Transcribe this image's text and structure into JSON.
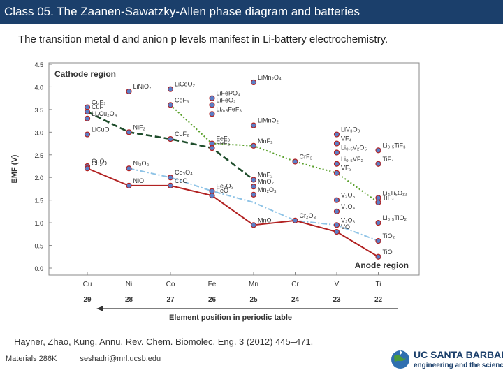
{
  "header": {
    "title": "Class 05. The Zaanen-Sawatzky-Allen phase diagram and batteries"
  },
  "subtitle": "The transition metal d and anion p levels manifest in Li-battery electrochemistry.",
  "citation": "Hayner, Zhao, Kung, Annu. Rev. Chem. Biomolec. Eng. 3 (2012) 445–471.",
  "footer": {
    "course": "Materials 286K",
    "email": "seshadri@mrl.ucsb.edu"
  },
  "logo": {
    "name": "UC SANTA BARBARA",
    "subtitle": "engineering and the sciences"
  },
  "chart_data": {
    "type": "scatter",
    "ylabel": "EMF (V)",
    "xlabel": "Element position in periodic table",
    "ylim": [
      0,
      4.5
    ],
    "yticks": [
      "4.5",
      "4.0",
      "3.5",
      "3.0",
      "2.5",
      "2.0",
      "1.5",
      "1.0",
      "0.5",
      "0.0"
    ],
    "categories": [
      "Cu",
      "Ni",
      "Co",
      "Fe",
      "Mn",
      "Cr",
      "V",
      "Ti"
    ],
    "positions": [
      "29",
      "28",
      "27",
      "26",
      "25",
      "24",
      "23",
      "22"
    ],
    "region_labels": {
      "cathode": "Cathode region",
      "anode": "Anode region"
    },
    "grid": false,
    "compounds": [
      {
        "name": "CuF₂",
        "x": "Cu",
        "y": 3.55
      },
      {
        "name": "CuF",
        "x": "Cu",
        "y": 3.45
      },
      {
        "name": "Li₃Cu₂O₄",
        "x": "Cu",
        "y": 3.3
      },
      {
        "name": "LiCuO",
        "x": "Cu",
        "y": 2.95
      },
      {
        "name": "CuO",
        "x": "Cu",
        "y": 2.25
      },
      {
        "name": "Cu₂O",
        "x": "Cu",
        "y": 2.2
      },
      {
        "name": "LiNiO₂",
        "x": "Ni",
        "y": 3.9
      },
      {
        "name": "NiF₂",
        "x": "Ni",
        "y": 3.0
      },
      {
        "name": "Ni₂O₃",
        "x": "Ni",
        "y": 2.2
      },
      {
        "name": "NiO",
        "x": "Ni",
        "y": 1.82
      },
      {
        "name": "LiCoO₂",
        "x": "Co",
        "y": 3.95
      },
      {
        "name": "CoF₃",
        "x": "Co",
        "y": 3.6
      },
      {
        "name": "CoF₂",
        "x": "Co",
        "y": 2.85
      },
      {
        "name": "Co₃O₄",
        "x": "Co",
        "y": 2.0
      },
      {
        "name": "CoO",
        "x": "Co",
        "y": 1.82
      },
      {
        "name": "LiFePO₄",
        "x": "Fe",
        "y": 3.75
      },
      {
        "name": "LiFeO₂",
        "x": "Fe",
        "y": 3.6
      },
      {
        "name": "Li₀.₅FeF₃",
        "x": "Fe",
        "y": 3.4
      },
      {
        "name": "FeF₃",
        "x": "Fe",
        "y": 2.75
      },
      {
        "name": "FeF₂",
        "x": "Fe",
        "y": 2.65
      },
      {
        "name": "Fe₂O₃",
        "x": "Fe",
        "y": 1.7
      },
      {
        "name": "FeO",
        "x": "Fe",
        "y": 1.6
      },
      {
        "name": "LiMn₂O₄",
        "x": "Mn",
        "y": 4.1
      },
      {
        "name": "LiMnO₂",
        "x": "Mn",
        "y": 3.15
      },
      {
        "name": "MnF₃",
        "x": "Mn",
        "y": 2.7
      },
      {
        "name": "MnF₂",
        "x": "Mn",
        "y": 1.95
      },
      {
        "name": "MnO₂",
        "x": "Mn",
        "y": 1.8
      },
      {
        "name": "Mn₂O₃",
        "x": "Mn",
        "y": 1.62
      },
      {
        "name": "MnO",
        "x": "Mn",
        "y": 0.95
      },
      {
        "name": "CrF₃",
        "x": "Cr",
        "y": 2.35
      },
      {
        "name": "Cr₂O₃",
        "x": "Cr",
        "y": 1.05
      },
      {
        "name": "LiV₃O₈",
        "x": "V",
        "y": 2.95
      },
      {
        "name": "VF₄",
        "x": "V",
        "y": 2.75
      },
      {
        "name": "Li₀.₅V₂O₅",
        "x": "V",
        "y": 2.55
      },
      {
        "name": "Li₀.₅VF₃",
        "x": "V",
        "y": 2.3
      },
      {
        "name": "VF₃",
        "x": "V",
        "y": 2.1
      },
      {
        "name": "V₂O₅",
        "x": "V",
        "y": 1.5
      },
      {
        "name": "V₂O₄",
        "x": "V",
        "y": 1.25
      },
      {
        "name": "V₂O₃",
        "x": "V",
        "y": 0.95
      },
      {
        "name": "VO",
        "x": "V",
        "y": 0.8
      },
      {
        "name": "Li₀.₅TiF₃",
        "x": "Ti",
        "y": 2.6
      },
      {
        "name": "TiF₄",
        "x": "Ti",
        "y": 2.3
      },
      {
        "name": "Li₄Ti₅O₁₂",
        "x": "Ti",
        "y": 1.55
      },
      {
        "name": "TiF₃",
        "x": "Ti",
        "y": 1.45
      },
      {
        "name": "Li₀.₅TiO₂",
        "x": "Ti",
        "y": 1.0
      },
      {
        "name": "TiO₂",
        "x": "Ti",
        "y": 0.6
      },
      {
        "name": "TiO",
        "x": "Ti",
        "y": 0.25
      }
    ],
    "series": [
      {
        "style": "dashed",
        "color": "#1e4d2b",
        "x": [
          "Cu",
          "Ni",
          "Co",
          "Fe",
          "Mn"
        ],
        "y": [
          3.45,
          3.0,
          2.85,
          2.65,
          1.95
        ]
      },
      {
        "style": "dotted",
        "color": "#5aa02c",
        "x": [
          "Co",
          "Fe",
          "Mn",
          "Cr",
          "V",
          "Ti"
        ],
        "y": [
          3.6,
          2.75,
          2.7,
          2.35,
          2.1,
          1.45
        ]
      },
      {
        "style": "dashdot",
        "color": "#8ec3e6",
        "x": [
          "Ni",
          "Co",
          "Fe",
          "Mn",
          "Cr",
          "V",
          "Ti"
        ],
        "y": [
          2.2,
          2.0,
          1.7,
          1.45,
          1.05,
          0.95,
          0.6
        ]
      },
      {
        "style": "solid",
        "color": "#b22222",
        "x": [
          "Cu",
          "Ni",
          "Co",
          "Fe",
          "Mn",
          "Cr",
          "V",
          "Ti"
        ],
        "y": [
          2.2,
          1.82,
          1.82,
          1.6,
          0.95,
          1.05,
          0.8,
          0.25
        ]
      }
    ]
  }
}
